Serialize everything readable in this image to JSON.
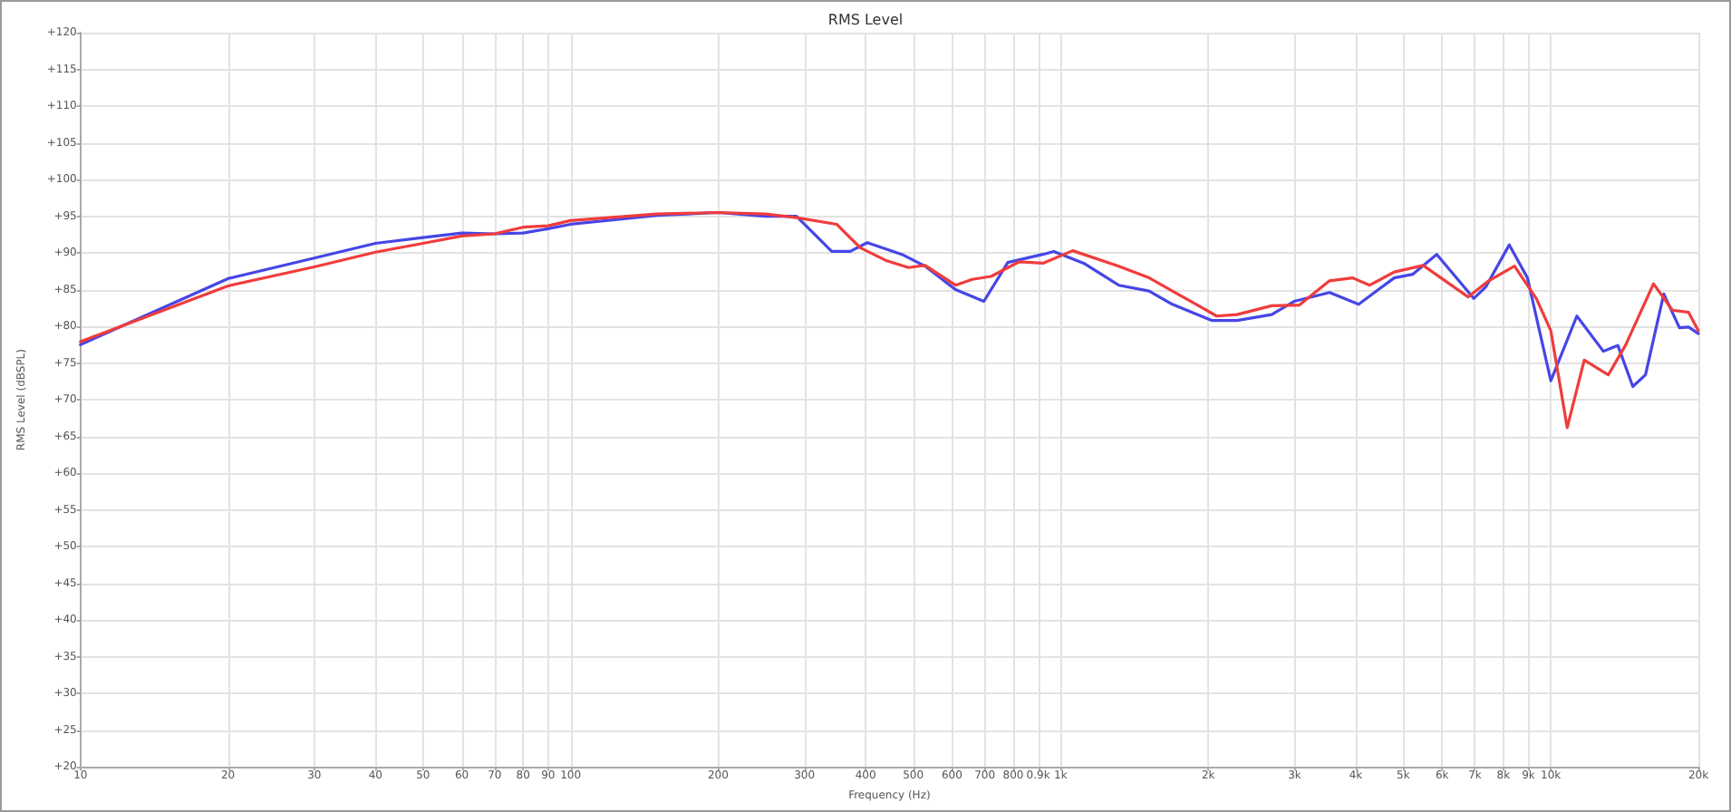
{
  "chart_data": {
    "type": "line",
    "title": "RMS Level",
    "xlabel": "Frequency (Hz)",
    "ylabel": "RMS Level (dBSPL)",
    "log": "x",
    "grid": true,
    "marker": "none",
    "line_style": "solid",
    "xlim": [
      10,
      20000
    ],
    "xticks": [
      10,
      20,
      30,
      40,
      50,
      60,
      70,
      80,
      90,
      100,
      200,
      300,
      400,
      500,
      600,
      700,
      800,
      {
        "value": 900,
        "label": "0.9k"
      },
      {
        "value": 1000,
        "label": "1k"
      },
      {
        "value": 2000,
        "label": "2k"
      },
      {
        "value": 3000,
        "label": "3k"
      },
      {
        "value": 4000,
        "label": "4k"
      },
      {
        "value": 5000,
        "label": "5k"
      },
      {
        "value": 6000,
        "label": "6k"
      },
      {
        "value": 7000,
        "label": "7k"
      },
      {
        "value": 8000,
        "label": "8k"
      },
      {
        "value": 9000,
        "label": "9k"
      },
      {
        "value": 10000,
        "label": "10k"
      },
      {
        "value": 20000,
        "label": "20k"
      }
    ],
    "ylim": [
      20,
      120
    ],
    "yticks": [
      {
        "value": 20,
        "label": "+20"
      },
      {
        "value": 25,
        "label": "+25"
      },
      {
        "value": 30,
        "label": "+30"
      },
      {
        "value": 35,
        "label": "+35"
      },
      {
        "value": 40,
        "label": "+40"
      },
      {
        "value": 45,
        "label": "+45"
      },
      {
        "value": 50,
        "label": "+50"
      },
      {
        "value": 55,
        "label": "+55"
      },
      {
        "value": 60,
        "label": "+60"
      },
      {
        "value": 65,
        "label": "+65"
      },
      {
        "value": 70,
        "label": "+70"
      },
      {
        "value": 75,
        "label": "+75"
      },
      {
        "value": 80,
        "label": "+80"
      },
      {
        "value": 85,
        "label": "+85"
      },
      {
        "value": 90,
        "label": "+90"
      },
      {
        "value": 95,
        "label": "+95"
      },
      {
        "value": 100,
        "label": "+100"
      },
      {
        "value": 105,
        "label": "+105"
      },
      {
        "value": 110,
        "label": "+110"
      },
      {
        "value": 115,
        "label": "+115"
      },
      {
        "value": 120,
        "label": "+120"
      }
    ],
    "series": [
      {
        "color": "#4646e6",
        "x": [
          10,
          20,
          30,
          40,
          50,
          60,
          70,
          80,
          90,
          100,
          150,
          200,
          250,
          289,
          341,
          372,
          403,
          474,
          529,
          610,
          697,
          780,
          920,
          968,
          1114,
          1313,
          1515,
          1690,
          2031,
          2289,
          2694,
          2994,
          3536,
          4054,
          4793,
          5231,
          5851,
          6962,
          7373,
          8227,
          8960,
          10000,
          11300,
          12800,
          13700,
          14700,
          15600,
          17000,
          18300,
          19100,
          20000
        ],
        "values": [
          77.5,
          86.5,
          89.3,
          91.3,
          92.1,
          92.7,
          92.6,
          92.7,
          93.3,
          93.9,
          95.1,
          95.5,
          95.0,
          95.0,
          90.2,
          90.2,
          91.4,
          89.8,
          88.2,
          85.0,
          83.4,
          88.7,
          89.8,
          90.2,
          88.6,
          85.6,
          84.8,
          83.0,
          80.8,
          80.8,
          81.6,
          83.4,
          84.6,
          83.0,
          86.6,
          87.1,
          89.8,
          83.8,
          85.4,
          91.1,
          86.6,
          72.6,
          81.4,
          76.6,
          77.4,
          71.8,
          73.4,
          84.4,
          79.8,
          79.9,
          79.0
        ]
      },
      {
        "color": "#f03c3c",
        "x": [
          10,
          20,
          30,
          40,
          50,
          60,
          70,
          80,
          90,
          100,
          150,
          200,
          250,
          289,
          349,
          390,
          439,
          489,
          529,
          610,
          660,
          721,
          823,
          920,
          1058,
          1313,
          1515,
          1690,
          1890,
          2081,
          2289,
          2694,
          3070,
          3536,
          3940,
          4270,
          4793,
          5490,
          6780,
          7470,
          8430,
          9340,
          10000,
          10800,
          11700,
          13100,
          14200,
          16200,
          17700,
          19100,
          20000
        ],
        "values": [
          77.9,
          85.5,
          88.1,
          90.1,
          91.3,
          92.3,
          92.6,
          93.5,
          93.7,
          94.4,
          95.3,
          95.5,
          95.3,
          94.8,
          93.9,
          90.7,
          89.0,
          88.0,
          88.3,
          85.6,
          86.4,
          86.8,
          88.8,
          88.6,
          90.3,
          88.2,
          86.6,
          84.8,
          83.0,
          81.4,
          81.6,
          82.8,
          82.9,
          86.2,
          86.6,
          85.6,
          87.4,
          88.3,
          84.0,
          86.2,
          88.2,
          83.8,
          79.4,
          66.2,
          75.4,
          73.4,
          77.4,
          85.8,
          82.2,
          81.9,
          79.4
        ]
      }
    ]
  }
}
